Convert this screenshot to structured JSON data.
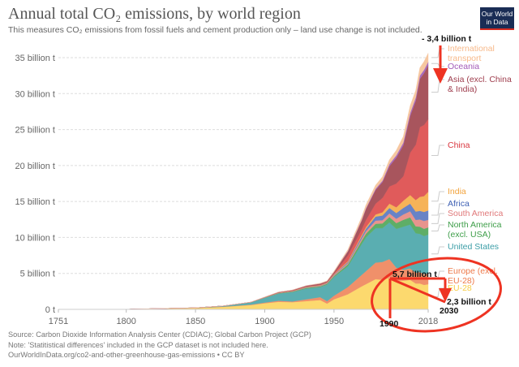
{
  "header": {
    "title": "Annual total CO₂ emissions, by world region",
    "subtitle": "This measures CO₂ emissions from fossil fuels and cement production only – land use change is not included.",
    "logo_line1": "Our World",
    "logo_line2": "in Data",
    "logo_color": "#1a2d55",
    "logo_accent": "#d42b21"
  },
  "footer": {
    "source": "Source: Carbon Dioxide Information Analysis Center (CDIAC); Global Carbon Project (GCP)",
    "note": "Note: 'Statitistical differences' included in the GCP dataset is not included here.",
    "url": "OurWorldInData.org/co2-and-other-greenhouse-gas-emissions • CC BY"
  },
  "chart_data": {
    "type": "area",
    "stacked": true,
    "title": "Annual total CO₂ emissions, by world region",
    "xlabel": "",
    "ylabel": "",
    "xlim": [
      1751,
      2018
    ],
    "ylim": [
      0,
      36
    ],
    "grid": true,
    "legend_placement": "right",
    "x_ticks": [
      "1751",
      "1800",
      "1850",
      "1900",
      "1950",
      "2018"
    ],
    "y_ticks": [
      {
        "value": 0,
        "label": "0 t"
      },
      {
        "value": 5,
        "label": "5 billion t"
      },
      {
        "value": 10,
        "label": "10 billion t"
      },
      {
        "value": 15,
        "label": "15 billion t"
      },
      {
        "value": 20,
        "label": "20 billion t"
      },
      {
        "value": 25,
        "label": "25 billion t"
      },
      {
        "value": 30,
        "label": "30 billion t"
      },
      {
        "value": 35,
        "label": "35 billion t"
      }
    ],
    "x": [
      1751,
      1800,
      1850,
      1870,
      1890,
      1900,
      1910,
      1920,
      1930,
      1940,
      1945,
      1950,
      1960,
      1970,
      1973,
      1980,
      1985,
      1990,
      1995,
      2000,
      2005,
      2009,
      2012,
      2015,
      2018
    ],
    "series": [
      {
        "name": "EU-28",
        "color": "#fcd96e",
        "values": [
          0.0,
          0.02,
          0.18,
          0.35,
          0.6,
          0.85,
          1.05,
          1.0,
          1.15,
          1.3,
          0.8,
          1.4,
          2.1,
          3.2,
          3.5,
          4.2,
          4.1,
          4.4,
          4.0,
          4.0,
          4.1,
          3.6,
          3.6,
          3.4,
          3.5
        ]
      },
      {
        "name": "Europe (excl. EU-28)",
        "color": "#f0906a",
        "values": [
          0.0,
          0.0,
          0.02,
          0.03,
          0.06,
          0.1,
          0.15,
          0.1,
          0.25,
          0.4,
          0.35,
          0.5,
          1.0,
          1.6,
          1.8,
          2.3,
          2.5,
          2.6,
          1.8,
          1.5,
          1.6,
          1.5,
          1.6,
          1.5,
          1.5
        ]
      },
      {
        "name": "United States",
        "color": "#5aaeb1",
        "values": [
          0.0,
          0.0,
          0.02,
          0.1,
          0.3,
          0.65,
          1.0,
          1.3,
          1.5,
          1.4,
          2.3,
          2.6,
          2.9,
          4.3,
          4.7,
          4.8,
          4.7,
          5.1,
          5.4,
          6.0,
          6.1,
          5.5,
          5.3,
          5.3,
          5.4
        ]
      },
      {
        "name": "North America (excl. USA)",
        "color": "#5eae67",
        "values": [
          0.0,
          0.0,
          0.0,
          0.0,
          0.02,
          0.03,
          0.05,
          0.07,
          0.1,
          0.1,
          0.12,
          0.15,
          0.25,
          0.45,
          0.5,
          0.6,
          0.65,
          0.75,
          0.8,
          0.95,
          1.0,
          0.95,
          1.0,
          1.0,
          1.0
        ]
      },
      {
        "name": "South America",
        "color": "#e8948d",
        "values": [
          0.0,
          0.0,
          0.0,
          0.0,
          0.01,
          0.02,
          0.03,
          0.04,
          0.05,
          0.06,
          0.06,
          0.1,
          0.18,
          0.3,
          0.35,
          0.45,
          0.45,
          0.5,
          0.6,
          0.75,
          0.85,
          0.9,
          1.0,
          1.1,
          1.05
        ]
      },
      {
        "name": "Africa",
        "color": "#6883c6",
        "values": [
          0.0,
          0.0,
          0.0,
          0.0,
          0.0,
          0.01,
          0.02,
          0.03,
          0.04,
          0.05,
          0.05,
          0.08,
          0.15,
          0.3,
          0.35,
          0.55,
          0.65,
          0.75,
          0.8,
          0.9,
          1.05,
          1.15,
          1.2,
          1.25,
          1.3
        ]
      },
      {
        "name": "India",
        "color": "#f6b358",
        "values": [
          0.0,
          0.0,
          0.0,
          0.0,
          0.01,
          0.02,
          0.03,
          0.04,
          0.05,
          0.06,
          0.06,
          0.07,
          0.12,
          0.2,
          0.22,
          0.3,
          0.45,
          0.6,
          0.8,
          1.0,
          1.2,
          1.6,
          1.95,
          2.2,
          2.6
        ]
      },
      {
        "name": "China",
        "color": "#e05b5b",
        "values": [
          0.0,
          0.0,
          0.0,
          0.0,
          0.0,
          0.01,
          0.02,
          0.03,
          0.04,
          0.05,
          0.05,
          0.08,
          0.8,
          0.8,
          1.0,
          1.5,
          2.0,
          2.4,
          3.3,
          3.4,
          5.9,
          7.7,
          9.7,
          9.9,
          10.1
        ]
      },
      {
        "name": "Asia (excl. China & India)",
        "color": "#a8555d",
        "values": [
          0.0,
          0.0,
          0.0,
          0.0,
          0.01,
          0.02,
          0.05,
          0.07,
          0.1,
          0.15,
          0.12,
          0.2,
          0.55,
          1.2,
          1.5,
          1.9,
          2.2,
          2.8,
          3.6,
          4.3,
          5.1,
          6.1,
          6.7,
          7.2,
          7.5
        ]
      },
      {
        "name": "Oceania",
        "color": "#a86bbd",
        "values": [
          0.0,
          0.0,
          0.0,
          0.0,
          0.0,
          0.0,
          0.01,
          0.01,
          0.02,
          0.02,
          0.02,
          0.03,
          0.06,
          0.1,
          0.12,
          0.16,
          0.2,
          0.3,
          0.33,
          0.38,
          0.42,
          0.45,
          0.46,
          0.46,
          0.47
        ]
      },
      {
        "name": "International transport",
        "color": "#f6c7a0",
        "values": [
          0.0,
          0.0,
          0.0,
          0.0,
          0.0,
          0.0,
          0.0,
          0.0,
          0.0,
          0.05,
          0.05,
          0.1,
          0.2,
          0.4,
          0.45,
          0.5,
          0.55,
          0.6,
          0.7,
          0.85,
          1.0,
          1.0,
          1.1,
          1.15,
          1.2
        ]
      }
    ],
    "annotations": [
      {
        "text": "- 3,4 billion t",
        "type": "arrow-label"
      },
      {
        "text": "5,7 billion t",
        "type": "arrow-label"
      },
      {
        "text": "2,3 billion t",
        "type": "arrow-label"
      },
      {
        "text": "1990",
        "type": "year-marker"
      },
      {
        "text": "2030",
        "type": "year-marker"
      }
    ],
    "annotation_color": "#ee3322"
  },
  "legend": [
    {
      "line1": "International",
      "line2": "transport",
      "color": "#f7b98a"
    },
    {
      "line1": "Oceania",
      "line2": "",
      "color": "#a35bb8"
    },
    {
      "line1": "Asia (excl. China",
      "line2": "& India)",
      "color": "#9e3c4c"
    },
    {
      "line1": "China",
      "line2": "",
      "color": "#d9373f"
    },
    {
      "line1": "India",
      "line2": "",
      "color": "#f2a33c"
    },
    {
      "line1": "Africa",
      "line2": "",
      "color": "#3f61b4"
    },
    {
      "line1": "South America",
      "line2": "",
      "color": "#e0797a"
    },
    {
      "line1": "North America",
      "line2": "(excl. USA)",
      "color": "#3e9e49"
    },
    {
      "line1": "United States",
      "line2": "",
      "color": "#3c9ea7"
    },
    {
      "line1": "Europe (excl.",
      "line2": "EU-28)",
      "color": "#ee7a4b"
    },
    {
      "line1": "EU-28",
      "line2": "",
      "color": "#f7cd45"
    }
  ]
}
